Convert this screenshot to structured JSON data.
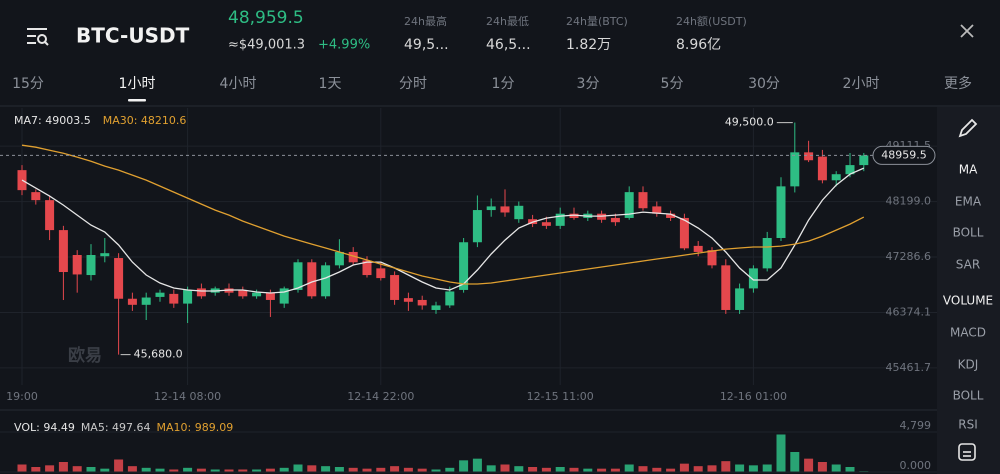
{
  "header": {
    "symbol": "BTC-USDT",
    "price": "48,959.5",
    "usd": "≈$49,001.3",
    "change": "+4.99%",
    "stats": [
      {
        "label": "24h最高",
        "value": "49,5..."
      },
      {
        "label": "24h最低",
        "value": "46,5..."
      },
      {
        "label": "24h量(BTC)",
        "value": "1.82万"
      },
      {
        "label": "24h额(USDT)",
        "value": "8.96亿"
      }
    ]
  },
  "tabs": {
    "items": [
      "15分",
      "1小时",
      "4小时",
      "1天",
      "分时",
      "1分",
      "3分",
      "5分",
      "30分",
      "2小时",
      "更多"
    ],
    "active": 1
  },
  "indicators": [
    {
      "label": "MA",
      "active": true
    },
    {
      "label": "EMA",
      "active": false
    },
    {
      "label": "BOLL",
      "active": false
    },
    {
      "label": "SAR",
      "active": false
    },
    {
      "label": "VOLUME",
      "active": true
    },
    {
      "label": "MACD",
      "active": false
    },
    {
      "label": "KDJ",
      "active": false
    },
    {
      "label": "BOLL",
      "active": false
    },
    {
      "label": "RSI",
      "active": false
    }
  ],
  "chart_data": [
    {
      "type": "candlestick",
      "watermark": "欧易",
      "categories": [
        "19:00",
        null,
        null,
        null,
        null,
        null,
        null,
        null,
        null,
        null,
        null,
        null,
        "12-14 08:00",
        null,
        null,
        null,
        null,
        null,
        null,
        null,
        null,
        null,
        null,
        null,
        null,
        null,
        "12-14 22:00",
        null,
        null,
        null,
        null,
        null,
        null,
        null,
        null,
        null,
        null,
        null,
        null,
        "12-15 11:00",
        null,
        null,
        null,
        null,
        null,
        null,
        null,
        null,
        null,
        null,
        null,
        null,
        null,
        "12-16 01:00",
        null,
        null,
        null,
        null,
        null,
        null,
        null,
        null
      ],
      "open": [
        48717,
        48355,
        48223,
        47730,
        47320,
        46990,
        47300,
        47270,
        46600,
        46500,
        46630,
        46680,
        46520,
        46770,
        46700,
        46770,
        46745,
        46640,
        46700,
        46520,
        46745,
        47200,
        46640,
        47150,
        47370,
        47230,
        47100,
        46990,
        46610,
        46580,
        46415,
        46490,
        46745,
        47530,
        48060,
        48120,
        47910,
        47910,
        47860,
        47800,
        48000,
        47930,
        48000,
        47930,
        47930,
        48355,
        48120,
        48000,
        47930,
        47470,
        47400,
        47150,
        46415,
        46770,
        47100,
        47600,
        48450,
        49010,
        48940,
        48550,
        48650,
        48800
      ],
      "high": [
        48800,
        48400,
        48300,
        47800,
        47400,
        47500,
        47600,
        47350,
        46700,
        46700,
        46750,
        46750,
        46800,
        46850,
        46800,
        46850,
        46800,
        46750,
        46750,
        46800,
        47250,
        47250,
        47200,
        47580,
        47450,
        47300,
        47200,
        47050,
        46700,
        46650,
        46550,
        46800,
        47600,
        48300,
        48250,
        48400,
        48200,
        47980,
        47950,
        48100,
        48100,
        48050,
        48050,
        48000,
        48450,
        48450,
        48200,
        48050,
        48000,
        47550,
        47450,
        47250,
        46850,
        47150,
        47700,
        48600,
        49500,
        49200,
        49050,
        48700,
        49000,
        49000
      ],
      "low": [
        48306,
        48150,
        47566,
        46579,
        46700,
        46900,
        47200,
        45680,
        46400,
        46250,
        46550,
        46450,
        46200,
        46600,
        46650,
        46650,
        46600,
        46600,
        46300,
        46450,
        46700,
        46600,
        46600,
        47100,
        47150,
        46950,
        46900,
        46500,
        46400,
        46420,
        46350,
        46450,
        46700,
        47450,
        47950,
        47950,
        47850,
        47780,
        47750,
        47750,
        47900,
        47880,
        47850,
        47800,
        47900,
        48050,
        47950,
        47880,
        47400,
        47300,
        47100,
        46350,
        46350,
        46700,
        47050,
        47550,
        48350,
        48850,
        48500,
        48450,
        48600,
        48700
      ],
      "close": [
        48388,
        48223,
        47730,
        47040,
        47000,
        47320,
        47350,
        46600,
        46500,
        46620,
        46700,
        46520,
        46745,
        46640,
        46770,
        46700,
        46640,
        46700,
        46580,
        46770,
        47200,
        46640,
        47150,
        47370,
        47200,
        46990,
        46940,
        46580,
        46550,
        46490,
        46490,
        46720,
        47530,
        48060,
        48120,
        48020,
        48130,
        47830,
        47800,
        48000,
        47930,
        48000,
        47900,
        47860,
        48355,
        48090,
        48000,
        47930,
        47430,
        47370,
        47150,
        46415,
        46770,
        47100,
        47600,
        48450,
        49010,
        48880,
        48550,
        48650,
        48800,
        48959.5
      ],
      "up_color": "#2ebd84",
      "down_color": "#e5484d",
      "series": [
        {
          "name": "MA7: 49003.5",
          "color": "#e6e6e6",
          "values": [
            48553,
            48421,
            48290,
            48142,
            47977,
            47813,
            47698,
            47484,
            47204,
            46991,
            46859,
            46777,
            46744,
            46728,
            46728,
            46744,
            46744,
            46711,
            46695,
            46711,
            46777,
            46876,
            46941,
            47040,
            47155,
            47204,
            47204,
            47106,
            46991,
            46876,
            46777,
            46744,
            46843,
            47073,
            47336,
            47566,
            47764,
            47862,
            47928,
            47961,
            47977,
            47961,
            47961,
            47977,
            47994,
            48026,
            48010,
            47994,
            47895,
            47764,
            47599,
            47369,
            47106,
            46908,
            46908,
            47106,
            47484,
            47895,
            48224,
            48470,
            48651,
            48750
          ]
        },
        {
          "name": "MA30: 48210.6",
          "color": "#e0a030",
          "values": [
            49128,
            49095,
            49046,
            48996,
            48931,
            48865,
            48783,
            48717,
            48635,
            48553,
            48454,
            48355,
            48257,
            48158,
            48059,
            47977,
            47878,
            47796,
            47714,
            47632,
            47566,
            47500,
            47435,
            47369,
            47303,
            47237,
            47171,
            47106,
            47040,
            46974,
            46925,
            46876,
            46843,
            46843,
            46859,
            46892,
            46925,
            46958,
            46991,
            47024,
            47056,
            47089,
            47122,
            47155,
            47188,
            47221,
            47254,
            47286,
            47319,
            47352,
            47385,
            47418,
            47435,
            47451,
            47451,
            47467,
            47500,
            47549,
            47632,
            47730,
            47829,
            47944
          ]
        }
      ],
      "ylim": [
        45180,
        49740
      ],
      "yticks": [
        49111.5,
        {
          "value": 48199,
          "label": "48199.0"
        },
        47286.6,
        46374.1,
        45461.7
      ],
      "grid": true,
      "last_price": 48959.5,
      "annotations": [
        {
          "value": 49500,
          "label": "49,500.0"
        },
        {
          "value": 45680,
          "label": "45,680.0"
        }
      ]
    },
    {
      "type": "bar",
      "legend": [
        {
          "name": "VOL: 94.49",
          "color": "#e6e6e6"
        },
        {
          "name": "MA5: 497.64",
          "color": "#c9c9c9"
        },
        {
          "name": "MA10: 989.09",
          "color": "#e0a030"
        }
      ],
      "values": [
        900,
        600,
        800,
        1200,
        700,
        600,
        400,
        1500,
        700,
        500,
        400,
        300,
        500,
        400,
        300,
        300,
        300,
        300,
        400,
        500,
        900,
        800,
        700,
        600,
        500,
        400,
        500,
        700,
        500,
        400,
        300,
        500,
        1400,
        1600,
        800,
        900,
        700,
        600,
        500,
        600,
        500,
        400,
        400,
        400,
        900,
        700,
        500,
        400,
        1000,
        700,
        800,
        1300,
        900,
        800,
        900,
        4500,
        2400,
        1600,
        1200,
        900,
        600,
        94.49
      ],
      "ylim": [
        0,
        4799
      ],
      "yticks": [
        {
          "value": 0,
          "label": "0.000"
        },
        {
          "value": 4799,
          "label": "4,799"
        }
      ]
    }
  ]
}
